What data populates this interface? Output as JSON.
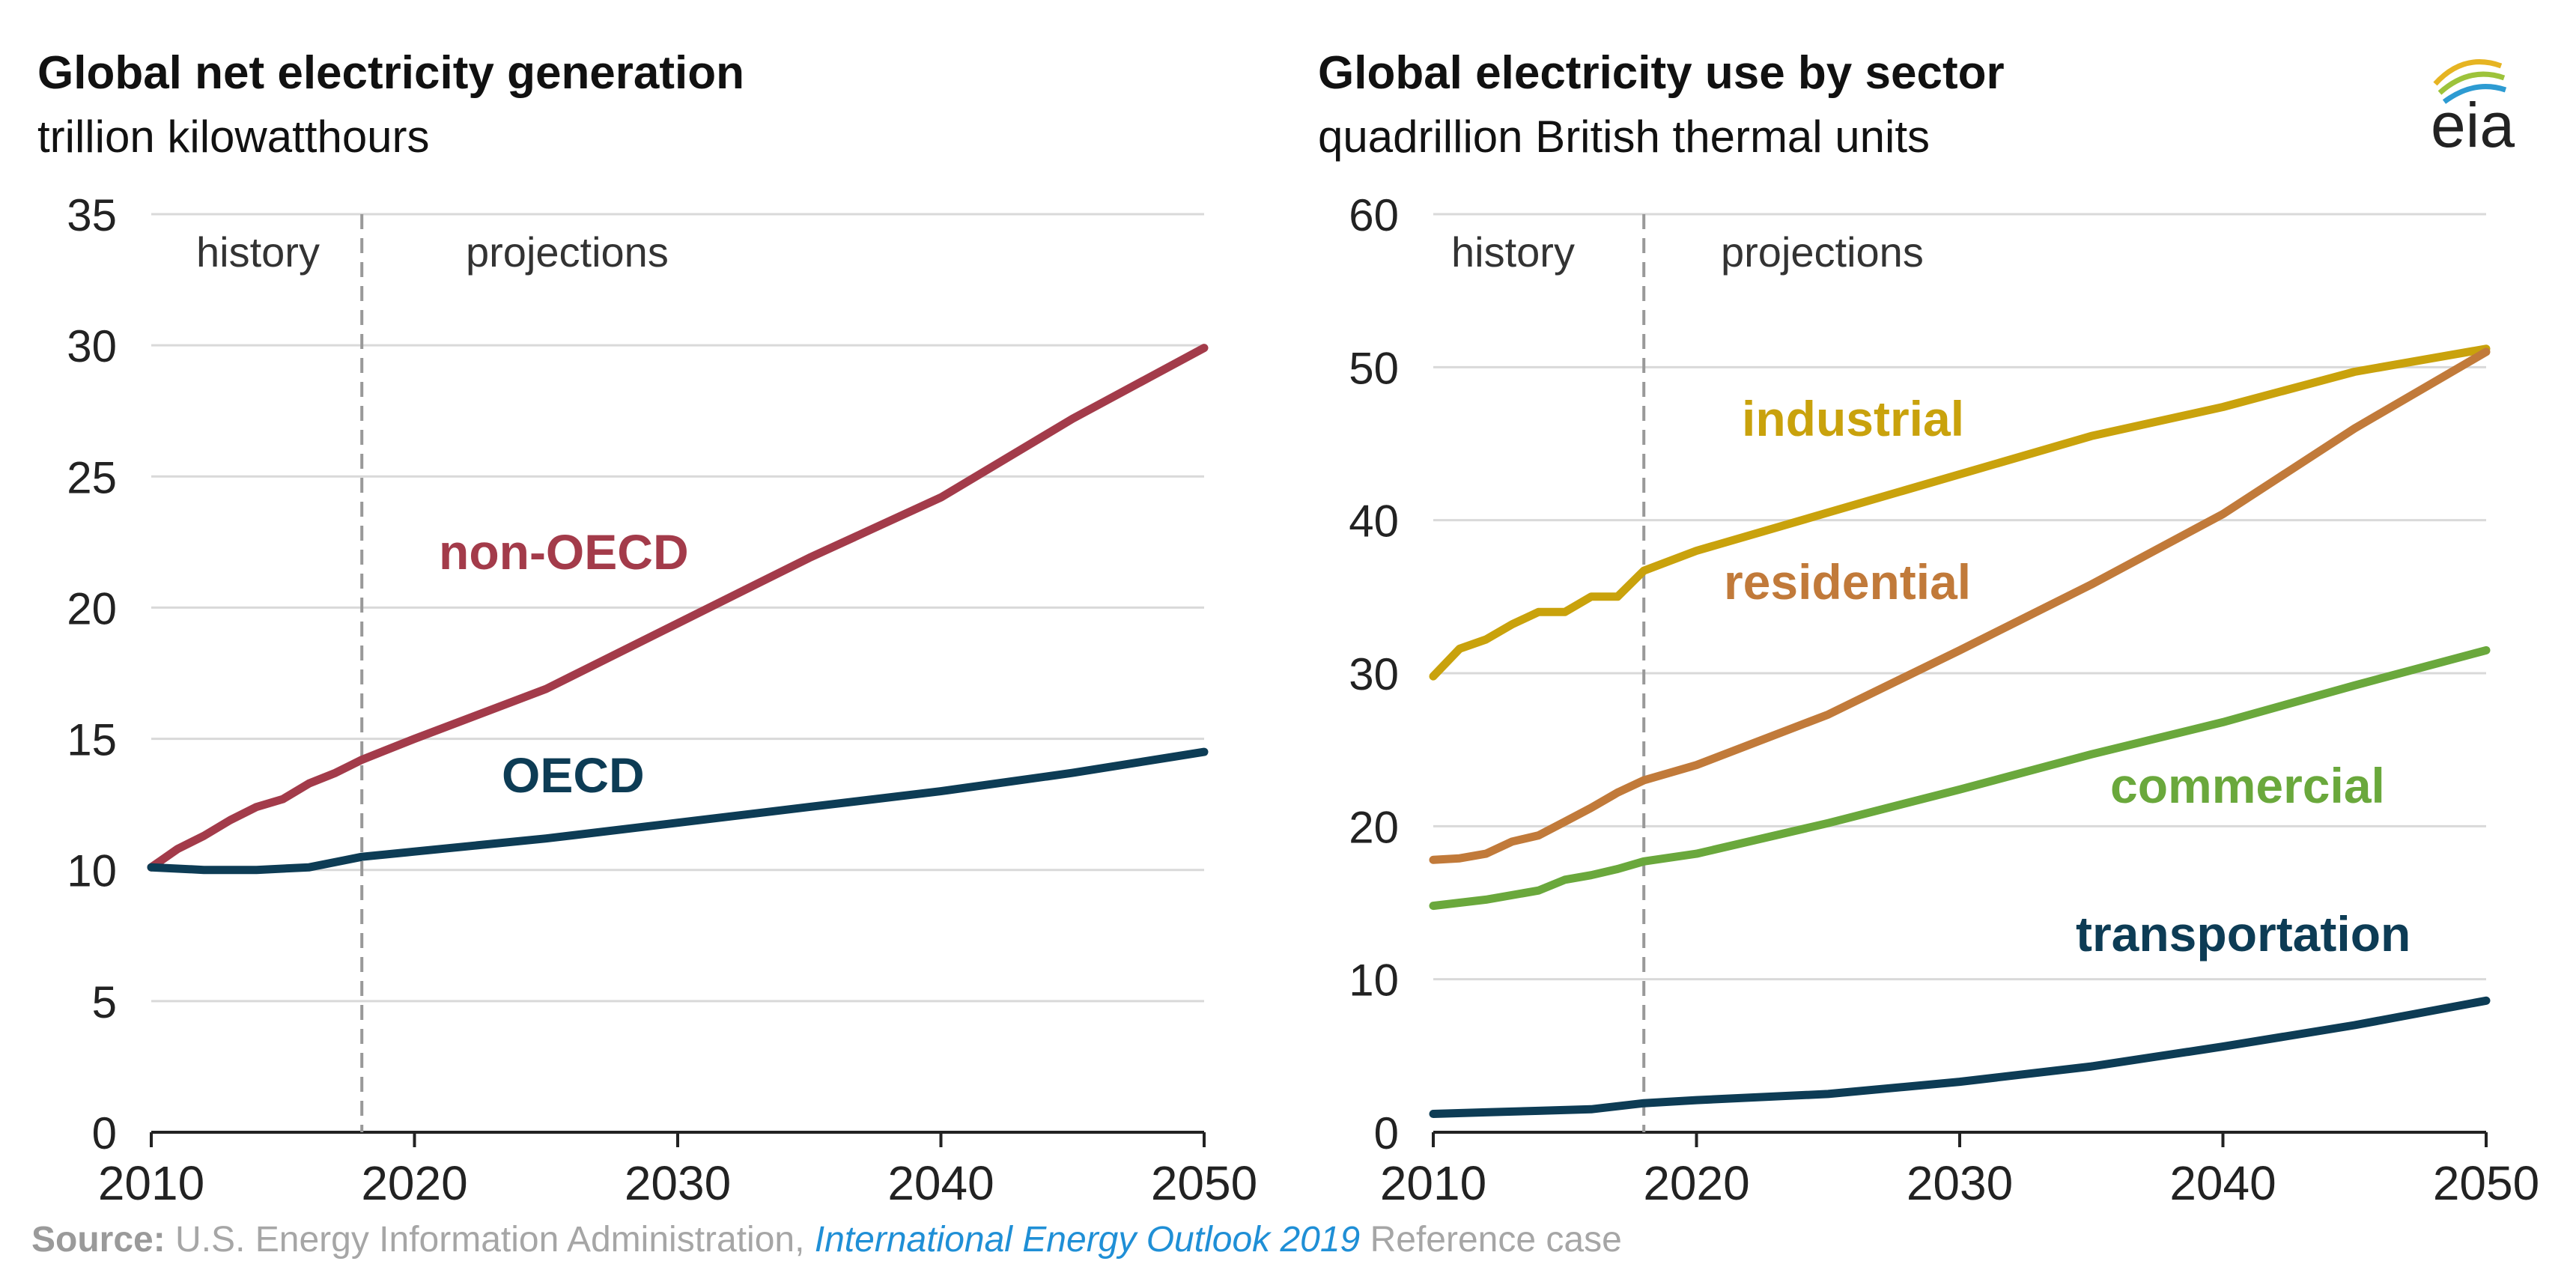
{
  "charts": {
    "left": {
      "title": "Global net electricity generation",
      "subtitle": "trillion kilowatthours"
    },
    "right": {
      "title": "Global electricity use by sector",
      "subtitle": "quadrillion British thermal units"
    }
  },
  "logo": {
    "text": "eia",
    "icon": "eia-logo-icon"
  },
  "source": {
    "label": "Source:",
    "text1": " U.S. Energy Information Administration, ",
    "publication": "International Energy Outlook 2019",
    "text2": " Reference case"
  },
  "colors": {
    "non_oecd": "#a33b4a",
    "oecd": "#0d3c55",
    "industrial": "#c9a20c",
    "residential": "#c17a3a",
    "commercial": "#6aa83c",
    "transportation": "#0d3c55",
    "grid": "#d9d9d9",
    "divider": "#999999"
  },
  "chart_data": [
    {
      "type": "line",
      "title": "Global net electricity generation",
      "ylabel": "trillion kilowatthours",
      "xlabel": "",
      "x_ticks": [
        2010,
        2020,
        2030,
        2040,
        2050
      ],
      "xlim": [
        2010,
        2050
      ],
      "y_ticks": [
        0,
        5,
        10,
        15,
        20,
        25,
        30,
        35
      ],
      "ylim": [
        0,
        35
      ],
      "grid": true,
      "divider_year": 2018,
      "region_labels": {
        "history": "history",
        "projections": "projections"
      },
      "series": [
        {
          "name": "non-OECD",
          "color_key": "non_oecd",
          "x": [
            2010,
            2011,
            2012,
            2013,
            2014,
            2015,
            2016,
            2017,
            2018,
            2020,
            2025,
            2030,
            2035,
            2040,
            2045,
            2050
          ],
          "values": [
            10.1,
            10.8,
            11.3,
            11.9,
            12.4,
            12.7,
            13.3,
            13.7,
            14.2,
            15.0,
            16.9,
            19.4,
            21.9,
            24.2,
            27.2,
            29.9
          ]
        },
        {
          "name": "OECD",
          "color_key": "oecd",
          "x": [
            2010,
            2012,
            2014,
            2016,
            2018,
            2020,
            2025,
            2030,
            2035,
            2040,
            2045,
            2050
          ],
          "values": [
            10.1,
            10.0,
            10.0,
            10.1,
            10.5,
            10.7,
            11.2,
            11.8,
            12.4,
            13.0,
            13.7,
            14.5
          ]
        }
      ]
    },
    {
      "type": "line",
      "title": "Global electricity use by sector",
      "ylabel": "quadrillion British thermal units",
      "xlabel": "",
      "x_ticks": [
        2010,
        2020,
        2030,
        2040,
        2050
      ],
      "xlim": [
        2010,
        2050
      ],
      "y_ticks": [
        0,
        10,
        20,
        30,
        40,
        50,
        60
      ],
      "ylim": [
        0,
        60
      ],
      "grid": true,
      "divider_year": 2018,
      "region_labels": {
        "history": "history",
        "projections": "projections"
      },
      "series": [
        {
          "name": "industrial",
          "color_key": "industrial",
          "x": [
            2010,
            2011,
            2012,
            2013,
            2014,
            2015,
            2016,
            2017,
            2018,
            2020,
            2025,
            2030,
            2035,
            2040,
            2045,
            2050
          ],
          "values": [
            29.8,
            31.6,
            32.2,
            33.2,
            34.0,
            34.0,
            35.0,
            35.0,
            36.7,
            38.0,
            40.5,
            43.0,
            45.5,
            47.4,
            49.7,
            51.2
          ]
        },
        {
          "name": "residential",
          "color_key": "residential",
          "x": [
            2010,
            2011,
            2012,
            2013,
            2014,
            2015,
            2016,
            2017,
            2018,
            2020,
            2025,
            2030,
            2035,
            2040,
            2045,
            2050
          ],
          "values": [
            17.8,
            17.9,
            18.2,
            19.0,
            19.4,
            20.3,
            21.2,
            22.2,
            23.0,
            24.0,
            27.3,
            31.5,
            35.8,
            40.4,
            46.0,
            51.0
          ]
        },
        {
          "name": "commercial",
          "color_key": "commercial",
          "x": [
            2010,
            2012,
            2014,
            2015,
            2016,
            2017,
            2018,
            2020,
            2025,
            2030,
            2035,
            2040,
            2045,
            2050
          ],
          "values": [
            14.8,
            15.2,
            15.8,
            16.5,
            16.8,
            17.2,
            17.7,
            18.2,
            20.2,
            22.4,
            24.7,
            26.8,
            29.2,
            31.5
          ]
        },
        {
          "name": "transportation",
          "color_key": "transportation",
          "x": [
            2010,
            2012,
            2014,
            2016,
            2018,
            2020,
            2025,
            2030,
            2035,
            2040,
            2045,
            2050
          ],
          "values": [
            1.2,
            1.3,
            1.4,
            1.5,
            1.9,
            2.1,
            2.5,
            3.3,
            4.3,
            5.6,
            7.0,
            8.6
          ]
        }
      ]
    }
  ]
}
